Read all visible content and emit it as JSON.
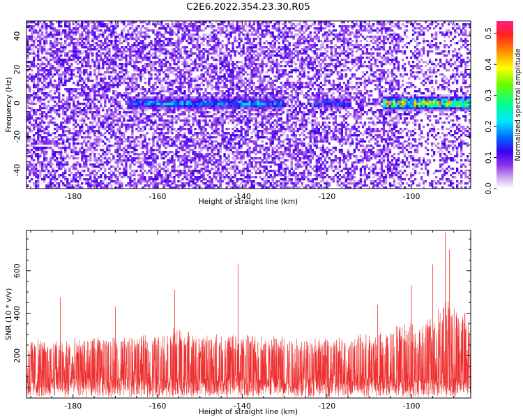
{
  "title": "C2E6.2022.354.23.30.R05",
  "chart_data": [
    {
      "type": "heatmap",
      "xlabel": "Height of straight line (km)",
      "ylabel": "Frequency (Hz)",
      "xlim": [
        -191,
        -86
      ],
      "ylim": [
        -51,
        49
      ],
      "xticks": [
        -180,
        -160,
        -140,
        -120,
        -100
      ],
      "xtick_labels": [
        "-180",
        "-160",
        "-140",
        "-120",
        "-100"
      ],
      "yticks": [
        -40,
        -20,
        0,
        20,
        40
      ],
      "ytick_labels": [
        "-40",
        "-20",
        "0",
        "20",
        "40"
      ],
      "colorbar": {
        "label": "Normalized spectral amplitude",
        "range": [
          0.0,
          0.54
        ],
        "ticks": [
          0.0,
          0.1,
          0.2,
          0.3,
          0.4,
          0.5
        ],
        "tick_labels": [
          "0.0",
          "0.1",
          "0.2",
          "0.3",
          "0.4",
          "0.5"
        ],
        "colormap": "rainbow (white, purple, blue, cyan, green, yellow, orange, red, magenta)"
      },
      "features": [
        {
          "height_range_km": [
            -167,
            -130
          ],
          "frequency_hz": 0,
          "amplitude_peak": 0.25
        },
        {
          "height_range_km": [
            -123,
            -114
          ],
          "frequency_hz": 0,
          "amplitude_peak": 0.18
        },
        {
          "height_range_km": [
            -107,
            -86
          ],
          "frequency_hz": 0,
          "amplitude_peak": 0.5
        }
      ]
    },
    {
      "type": "line",
      "xlabel": "Height of straight line (km)",
      "ylabel": "SNR (10 * v/v)",
      "xlim": [
        -191,
        -86
      ],
      "ylim": [
        0,
        790
      ],
      "xticks": [
        -180,
        -160,
        -140,
        -120,
        -100
      ],
      "xtick_labels": [
        "-180",
        "-160",
        "-140",
        "-120",
        "-100"
      ],
      "yticks": [
        200,
        400,
        600
      ],
      "ytick_labels": [
        "200",
        "400",
        "600"
      ],
      "series": [
        {
          "color": "#ee3030",
          "envelope_x": [
            -191,
            -186,
            -181,
            -176,
            -171,
            -166,
            -161,
            -158,
            -156,
            -151,
            -146,
            -141,
            -136,
            -131,
            -126,
            -121,
            -116,
            -111,
            -106,
            -103,
            -101,
            -99,
            -97,
            -95,
            -93,
            -91,
            -89,
            -87,
            -86
          ],
          "envelope_typical": [
            270,
            265,
            270,
            272,
            275,
            280,
            285,
            300,
            320,
            285,
            290,
            295,
            285,
            290,
            275,
            270,
            275,
            290,
            305,
            330,
            345,
            340,
            360,
            380,
            420,
            450,
            420,
            380,
            350
          ],
          "peaks": [
            {
              "x": -183,
              "y": 475
            },
            {
              "x": -170,
              "y": 430
            },
            {
              "x": -156,
              "y": 510
            },
            {
              "x": -141,
              "y": 630
            },
            {
              "x": -108,
              "y": 440
            },
            {
              "x": -100,
              "y": 530
            },
            {
              "x": -95,
              "y": 630
            },
            {
              "x": -92,
              "y": 780
            },
            {
              "x": -91,
              "y": 700
            }
          ]
        }
      ]
    }
  ]
}
